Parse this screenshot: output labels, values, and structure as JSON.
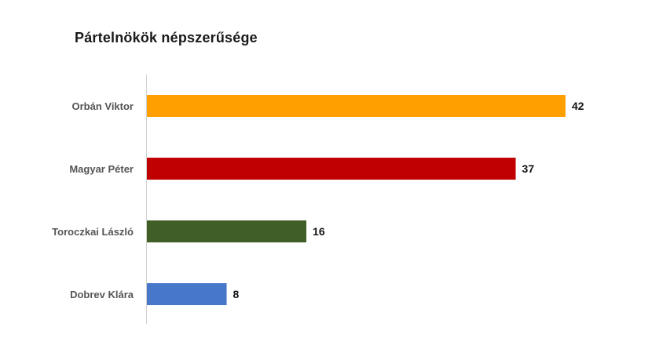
{
  "chart_data": {
    "type": "bar",
    "orientation": "horizontal",
    "title": "Pártelnökök népszerűsége",
    "categories": [
      "Orbán Viktor",
      "Magyar Péter",
      "Toroczkai László",
      "Dobrev Klára"
    ],
    "values": [
      42,
      37,
      16,
      8
    ],
    "colors": [
      "#FFA000",
      "#C00000",
      "#3F5F27",
      "#4677C9"
    ],
    "xlim": [
      0,
      45
    ],
    "grid": false,
    "legend": "none",
    "data_labels": true
  }
}
